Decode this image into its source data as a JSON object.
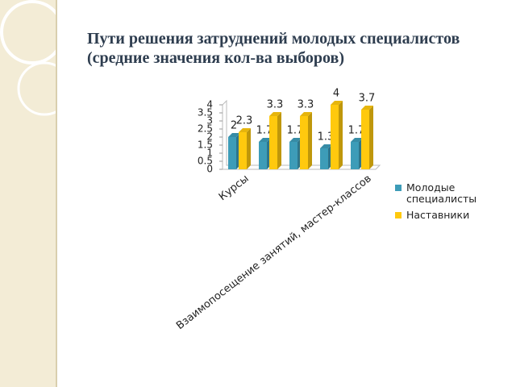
{
  "chart_data": {
    "type": "bar",
    "title": "Пути решения затруднений молодых специалистов (средние значения кол-ва выборов)",
    "categories": [
      "Курсы",
      null,
      null,
      null,
      "Взаимопосещение занятий, мастер-классов"
    ],
    "series": [
      {
        "name": "Молодые специалисты",
        "color": "#3d9cb8",
        "values": [
          2,
          1.7,
          1.7,
          1.3,
          1.7
        ]
      },
      {
        "name": "Наставники",
        "color": "#ffc90e",
        "values": [
          2.3,
          3.3,
          3.3,
          4,
          3.7
        ]
      }
    ],
    "ylim": [
      0,
      4
    ],
    "yticks": [
      0,
      0.5,
      1,
      1.5,
      2,
      2.5,
      3,
      3.5,
      4
    ],
    "legend": "right"
  }
}
